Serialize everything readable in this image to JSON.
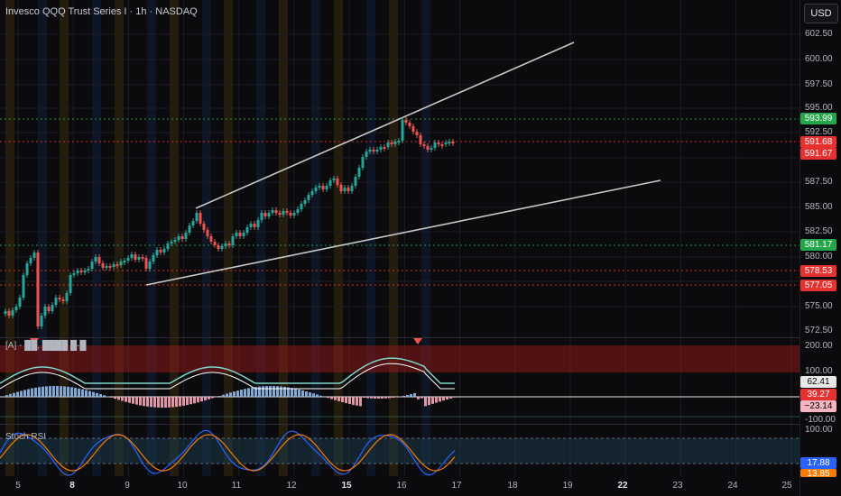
{
  "header": {
    "title": "Invesco QQQ Trust Series I · 1h · NASDAQ",
    "currency_button": "USD"
  },
  "price_axis": {
    "ticks": [
      "602.50",
      "600.00",
      "597.50",
      "595.00",
      "592.50",
      "587.50",
      "585.00",
      "582.50",
      "580.00",
      "575.00",
      "572.50"
    ],
    "badges": [
      {
        "label": "593.99",
        "color": "#26a64a"
      },
      {
        "label": "591.68",
        "color": "#e5312f"
      },
      {
        "label": "591.67",
        "color": "#e5312f"
      },
      {
        "label": "581.17",
        "color": "#26a64a"
      },
      {
        "label": "578.53",
        "color": "#e5312f"
      },
      {
        "label": "577.05",
        "color": "#e5312f"
      }
    ]
  },
  "indicator1": {
    "label": "[A] - ██, ████ █-█",
    "ticks": [
      "200.00",
      "100.00",
      "-100.00"
    ],
    "badges": [
      {
        "label": "62.41",
        "color": "#e8e8e8",
        "text": "#000000"
      },
      {
        "label": "39.27",
        "color": "#e5312f",
        "text": "#ffffff"
      },
      {
        "label": "−23.14",
        "color": "#f5b5c0",
        "text": "#000000"
      }
    ]
  },
  "indicator2": {
    "label": "Stoch RSI",
    "ticks": [
      "100.00"
    ],
    "badges": [
      {
        "label": "17.88",
        "color": "#2962ff",
        "text": "#ffffff"
      },
      {
        "label": "13.85",
        "color": "#f57c00",
        "text": "#ffffff"
      }
    ]
  },
  "time_axis": {
    "labels": [
      {
        "label": "5",
        "bold": false
      },
      {
        "label": "8",
        "bold": true
      },
      {
        "label": "9",
        "bold": false
      },
      {
        "label": "10",
        "bold": false
      },
      {
        "label": "11",
        "bold": false
      },
      {
        "label": "12",
        "bold": false
      },
      {
        "label": "15",
        "bold": true
      },
      {
        "label": "16",
        "bold": false
      },
      {
        "label": "17",
        "bold": false
      },
      {
        "label": "18",
        "bold": false
      },
      {
        "label": "19",
        "bold": false
      },
      {
        "label": "22",
        "bold": true
      },
      {
        "label": "23",
        "bold": false
      },
      {
        "label": "24",
        "bold": false
      },
      {
        "label": "25",
        "bold": false
      }
    ]
  },
  "colors": {
    "up": "#26a69a",
    "down": "#ef5350",
    "support": "#26a64a",
    "resistance": "#e5312f",
    "trend": "#c8c8c8"
  }
}
